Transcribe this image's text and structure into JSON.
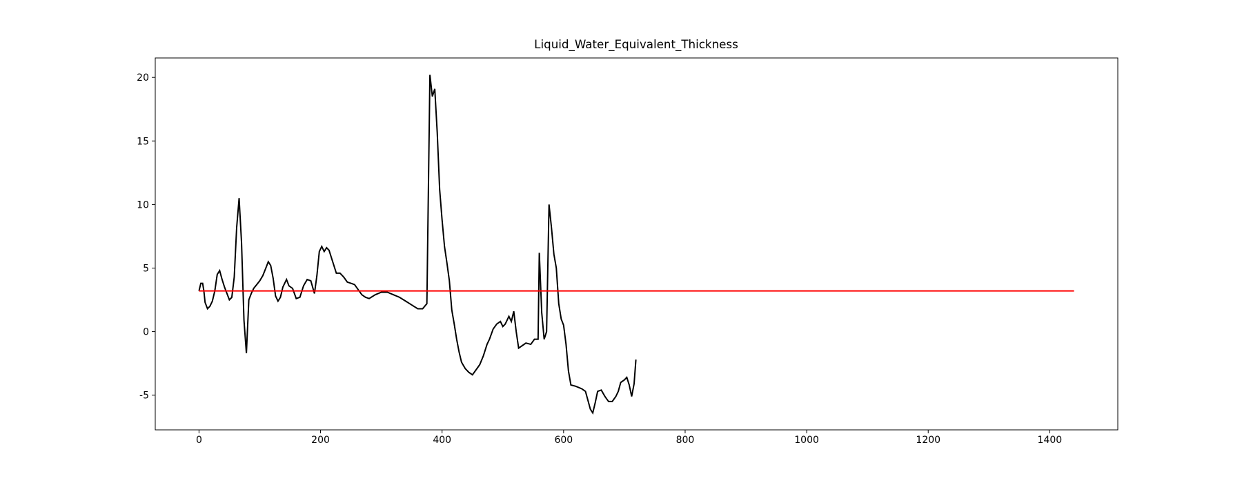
{
  "chart_data": {
    "type": "line",
    "title": "Liquid_Water_Equivalent_Thickness",
    "series": [
      {
        "color": "#000000",
        "x": [
          0,
          3,
          6,
          8,
          10,
          14,
          18,
          22,
          26,
          30,
          34,
          38,
          42,
          46,
          50,
          54,
          58,
          62,
          66,
          70,
          74,
          78,
          82,
          86,
          90,
          95,
          100,
          105,
          110,
          114,
          118,
          122,
          126,
          130,
          134,
          138,
          144,
          148,
          154,
          160,
          166,
          172,
          178,
          184,
          190,
          194,
          198,
          202,
          206,
          210,
          214,
          220,
          226,
          232,
          238,
          244,
          250,
          256,
          262,
          268,
          274,
          280,
          290,
          300,
          310,
          320,
          330,
          340,
          350,
          360,
          368,
          375,
          380,
          384,
          388,
          392,
          396,
          400,
          404,
          408,
          412,
          416,
          420,
          424,
          428,
          432,
          438,
          444,
          450,
          456,
          462,
          468,
          474,
          478,
          484,
          490,
          496,
          500,
          504,
          510,
          514,
          518,
          522,
          526,
          532,
          538,
          546,
          552,
          558,
          560,
          564,
          568,
          572,
          576,
          580,
          584,
          588,
          592,
          596,
          600,
          604,
          608,
          612,
          620,
          630,
          636,
          640,
          644,
          648,
          652,
          656,
          662,
          668,
          674,
          680,
          686,
          690,
          694,
          700,
          704,
          708,
          712,
          716,
          719
        ],
        "values": [
          3.2,
          3.8,
          3.8,
          3.2,
          2.3,
          1.8,
          2.0,
          2.4,
          3.2,
          4.5,
          4.8,
          4.1,
          3.5,
          3.0,
          2.5,
          2.7,
          4.3,
          8.2,
          10.5,
          7.0,
          0.9,
          -1.7,
          2.5,
          3.0,
          3.4,
          3.7,
          4.0,
          4.4,
          5.0,
          5.5,
          5.2,
          4.2,
          2.8,
          2.4,
          2.7,
          3.5,
          4.1,
          3.6,
          3.4,
          2.6,
          2.7,
          3.6,
          4.1,
          4.0,
          3.0,
          4.4,
          6.3,
          6.7,
          6.3,
          6.6,
          6.4,
          5.5,
          4.6,
          4.6,
          4.3,
          3.9,
          3.8,
          3.7,
          3.3,
          2.9,
          2.7,
          2.6,
          2.9,
          3.1,
          3.1,
          2.9,
          2.7,
          2.4,
          2.1,
          1.8,
          1.8,
          2.2,
          20.2,
          18.5,
          19.1,
          15.7,
          11.2,
          8.8,
          6.7,
          5.4,
          4.0,
          1.7,
          0.6,
          -0.6,
          -1.6,
          -2.4,
          -2.9,
          -3.2,
          -3.4,
          -3.0,
          -2.6,
          -1.9,
          -1.0,
          -0.6,
          0.2,
          0.6,
          0.8,
          0.4,
          0.6,
          1.2,
          0.8,
          1.6,
          0.0,
          -1.3,
          -1.1,
          -0.9,
          -1.0,
          -0.6,
          -0.6,
          6.2,
          1.5,
          -0.6,
          0.0,
          10.0,
          8.2,
          6.1,
          5.0,
          2.2,
          1.0,
          0.5,
          -1.0,
          -3.1,
          -4.2,
          -4.3,
          -4.5,
          -4.7,
          -5.4,
          -6.1,
          -6.4,
          -5.6,
          -4.7,
          -4.6,
          -5.1,
          -5.5,
          -5.5,
          -5.1,
          -4.7,
          -4.0,
          -3.8,
          -3.6,
          -4.2,
          -5.1,
          -4.1,
          -2.2
        ]
      },
      {
        "color": "#ff0000",
        "x": [
          0,
          1440
        ],
        "values": [
          3.2,
          3.2
        ]
      }
    ],
    "xlim": [
      -72,
      1512
    ],
    "xticks": [
      0,
      200,
      400,
      600,
      800,
      1000,
      1200,
      1400
    ],
    "ylim": [
      -7.73,
      21.53
    ],
    "yticks": [
      -5,
      0,
      5,
      10,
      15,
      20
    ]
  }
}
